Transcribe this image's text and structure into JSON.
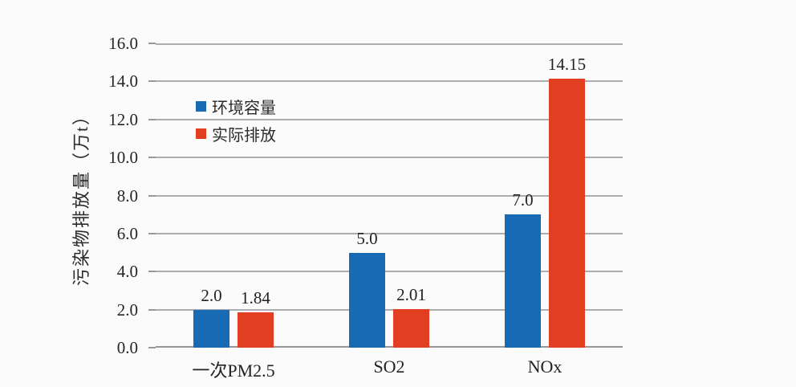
{
  "colors": {
    "capacity_blue": "#176ab3",
    "emission_red": "#e23e22",
    "gridline": "#adacae",
    "axis_line": "#97969a",
    "text": "#252525",
    "background": "#fcfbfc"
  },
  "chart_data": {
    "type": "bar",
    "title": "",
    "xlabel": "",
    "ylabel": "污染物排放量（万t）",
    "categories": [
      "一次PM2.5",
      "SO2",
      "NOx"
    ],
    "series": [
      {
        "name": "环境容量",
        "color_key": "capacity_blue",
        "values": [
          2.0,
          5.0,
          7.0
        ],
        "labels": [
          "2.0",
          "5.0",
          "7.0"
        ]
      },
      {
        "name": "实际排放",
        "color_key": "emission_red",
        "values": [
          1.84,
          2.01,
          14.15
        ],
        "labels": [
          "1.84",
          "2.01",
          "14.15"
        ]
      }
    ],
    "ylim": [
      0,
      16
    ],
    "ytick_step": 2,
    "ytick_labels": [
      "0.0",
      "2.0",
      "4.0",
      "6.0",
      "8.0",
      "10.0",
      "12.0",
      "14.0",
      "16.0"
    ],
    "grid": true,
    "legend_position": "upper-left-inside"
  }
}
